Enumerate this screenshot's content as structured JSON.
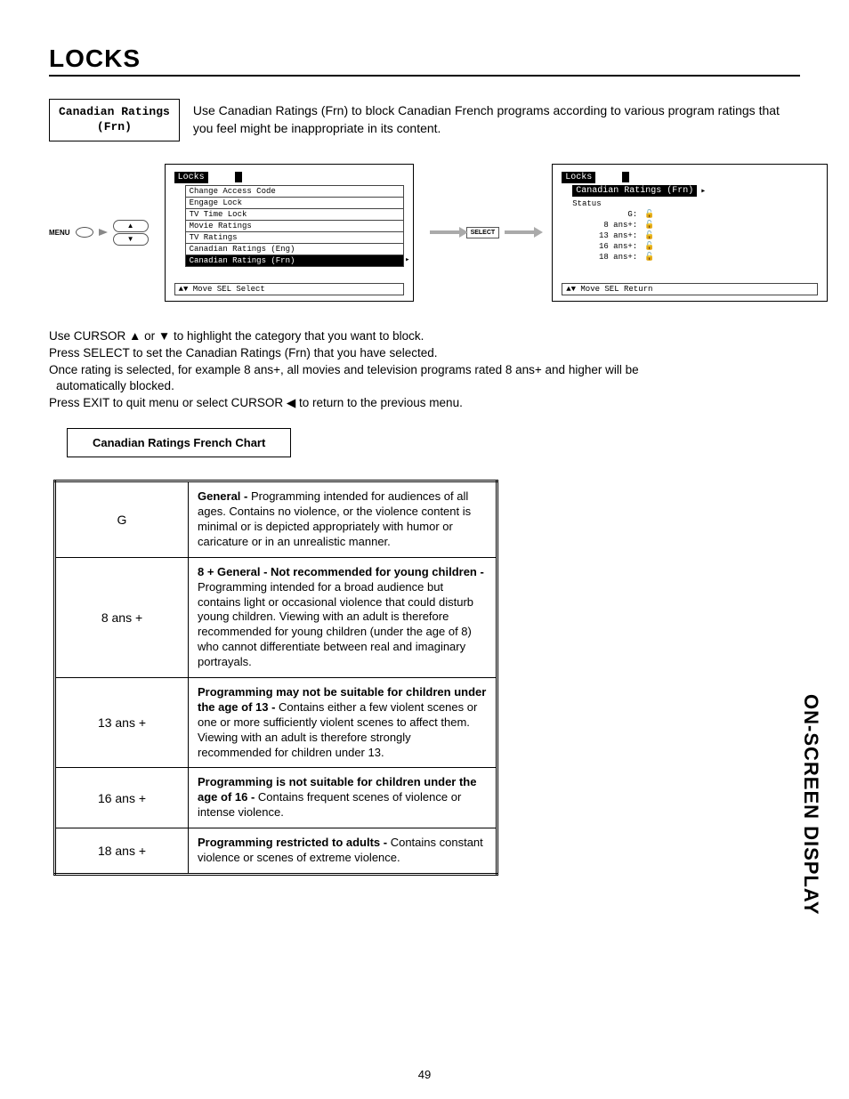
{
  "pageTitle": "LOCKS",
  "headerBox": "Canadian Ratings\n(Frn)",
  "headerDesc": "Use Canadian Ratings (Frn) to block Canadian French programs according to various program ratings that you feel might be inappropriate in its content.",
  "menuLabel": "MENU",
  "selectLabel": "SELECT",
  "locksPanel": {
    "title": "Locks",
    "items": [
      "Change Access Code",
      "Engage Lock",
      "TV Time Lock",
      "Movie Ratings",
      "TV Ratings",
      "Canadian Ratings (Eng)",
      "Canadian Ratings (Frn)"
    ],
    "footer": "▲▼ Move  SEL Select"
  },
  "statusPanel": {
    "title": "Locks",
    "subtitle": "Canadian Ratings (Frn)",
    "statusLabel": "Status",
    "rows": [
      {
        "label": "G:"
      },
      {
        "label": "8 ans+:"
      },
      {
        "label": "13 ans+:"
      },
      {
        "label": "16 ans+:"
      },
      {
        "label": "18 ans+:"
      }
    ],
    "footer": "▲▼ Move  SEL Return"
  },
  "instructions": {
    "l1": "Use CURSOR ▲ or ▼ to highlight the category that you want to block.",
    "l2": "Press SELECT to set the Canadian Ratings (Frn) that you have selected.",
    "l3": "Once rating is selected, for example 8 ans+, all movies and television programs rated 8 ans+ and higher will be",
    "l3b": " automatically blocked.",
    "l4": "Press EXIT to quit menu or select CURSOR ◀ to return to the previous menu."
  },
  "chartLabel": "Canadian Ratings French Chart",
  "ratings": [
    {
      "code": "G",
      "boldPrefix": "General - ",
      "desc": "Programming intended for audiences of all ages.  Contains no violence, or the violence content is minimal or is depicted appropriately with humor or caricature or in an unrealistic manner."
    },
    {
      "code": "8 ans +",
      "boldPrefix": "8 + General - Not recommended for young children -  ",
      "desc": "Programming intended for a broad audience but contains light or occasional violence that could disturb young children.   Viewing with an adult is therefore recommended for young children (under the age of 8) who cannot differentiate between real and imaginary portrayals."
    },
    {
      "code": "13 ans +",
      "boldPrefix": "Programming may not be suitable for children under the age of 13 - ",
      "desc": "Contains either a few violent scenes or one or more sufficiently violent scenes to affect them.  Viewing with an adult is therefore strongly recommended for children under 13."
    },
    {
      "code": "16 ans +",
      "boldPrefix": "Programming is not suitable for children under the age of 16 - ",
      "desc": "Contains frequent scenes of violence or intense violence."
    },
    {
      "code": "18 ans +",
      "boldPrefix": "Programming restricted to adults -  ",
      "desc": "Contains constant violence or scenes of extreme violence."
    }
  ],
  "sideLabel": "ON-SCREEN DISPLAY",
  "pageNumber": "49"
}
